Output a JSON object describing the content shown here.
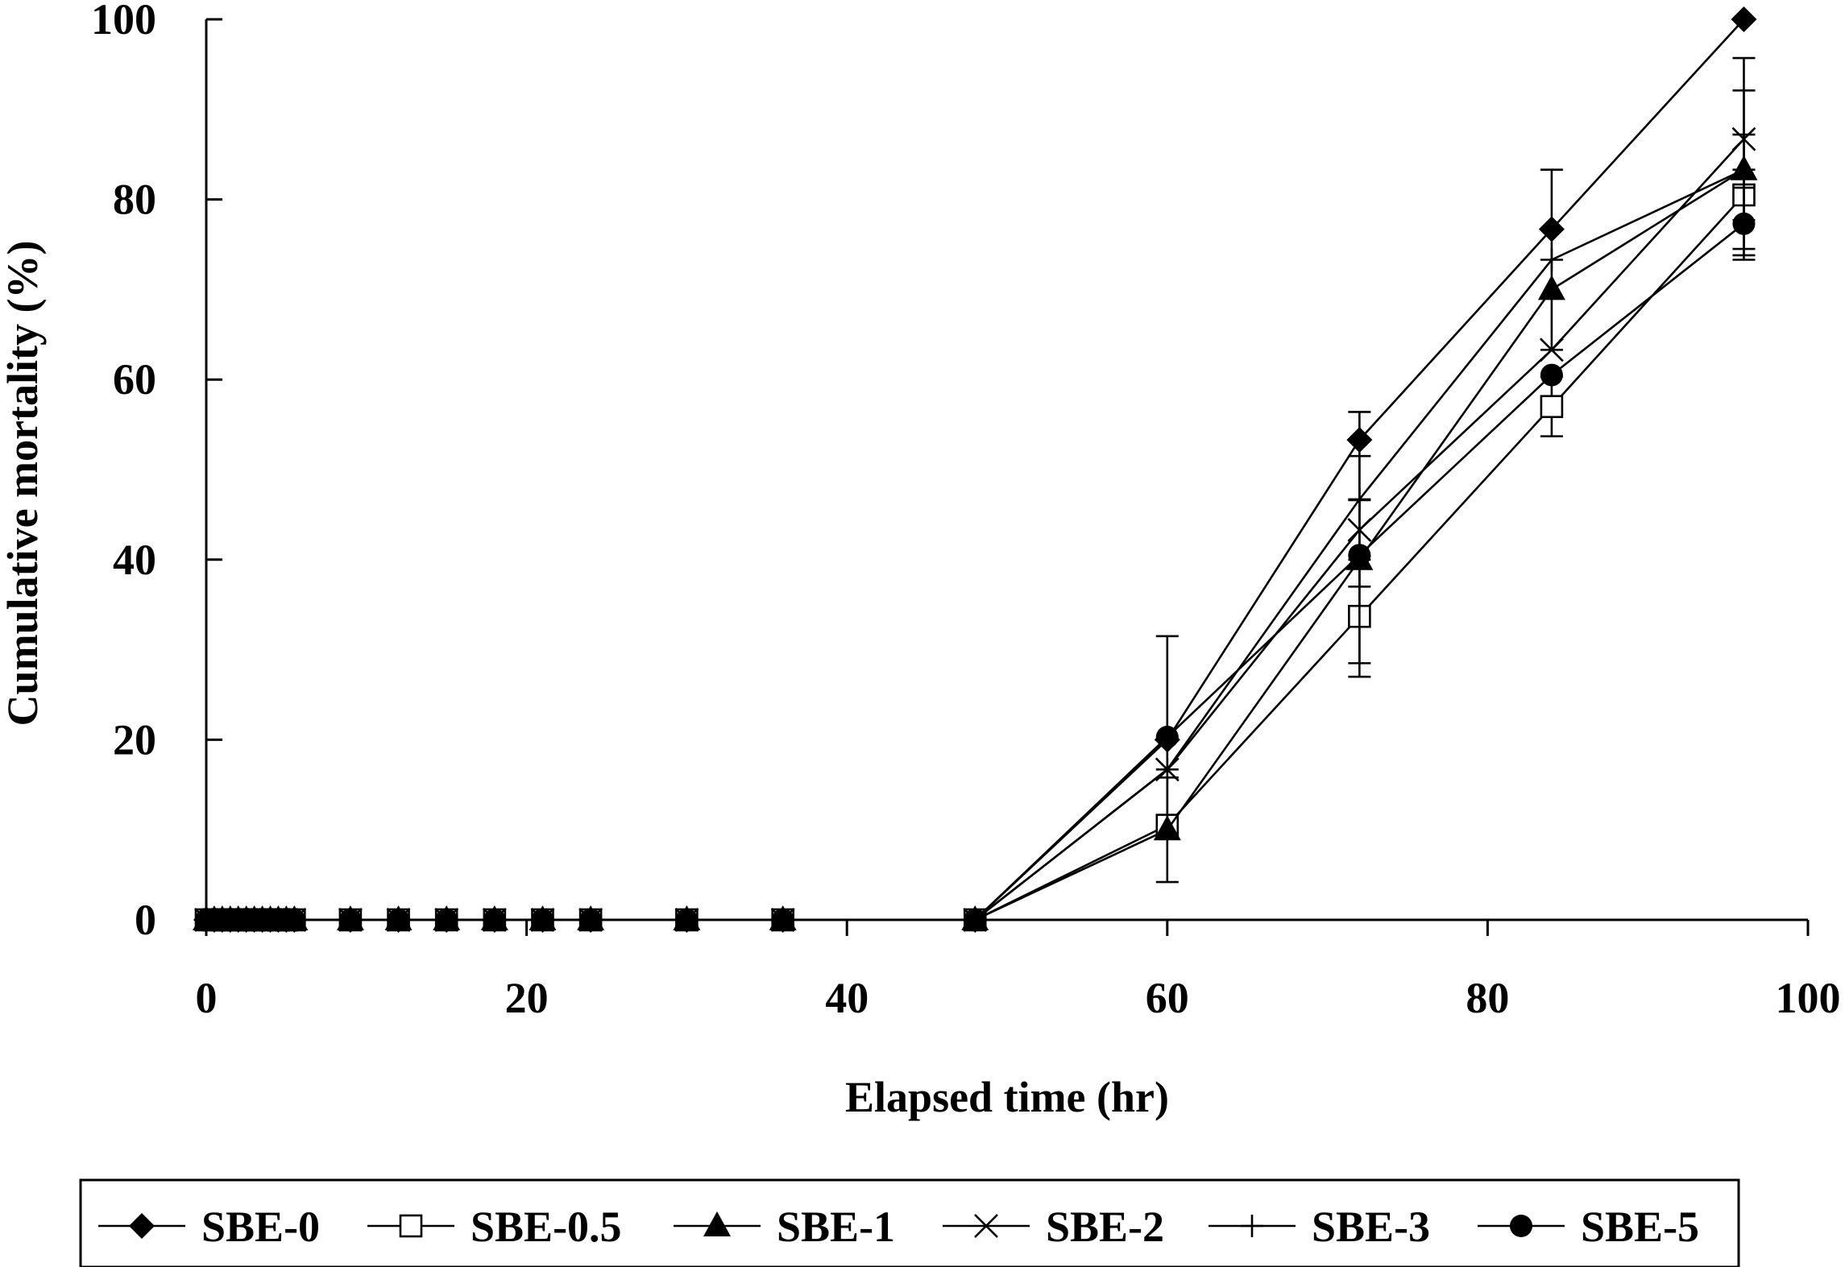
{
  "chart_data": {
    "type": "line",
    "title": "",
    "xlabel": "Elapsed time (hr)",
    "ylabel": "Cumulative mortality (%)",
    "xlim": [
      0,
      100
    ],
    "ylim": [
      0,
      100
    ],
    "xticks": [
      0,
      20,
      40,
      60,
      80,
      100
    ],
    "yticks": [
      0,
      20,
      40,
      60,
      80,
      100
    ],
    "x_tick_labels": [
      "0",
      "20",
      "40",
      "60",
      "80",
      "100"
    ],
    "y_tick_labels": [
      "0",
      "20",
      "40",
      "60",
      "80",
      "100"
    ],
    "grid": false,
    "legend_position": "bottom",
    "x": [
      0,
      0.5,
      1,
      1.5,
      2,
      2.5,
      3,
      3.5,
      4,
      4.5,
      5,
      5.5,
      9,
      12,
      15,
      18,
      21,
      24,
      30,
      36,
      48,
      60,
      72,
      84,
      96
    ],
    "series": [
      {
        "name": "SBE-0",
        "marker": "diamond",
        "values": [
          0,
          0,
          0,
          0,
          0,
          0,
          0,
          0,
          0,
          0,
          0,
          0,
          0,
          0,
          0,
          0,
          0,
          0,
          0,
          0,
          0,
          20,
          53.3,
          76.7,
          100
        ]
      },
      {
        "name": "SBE-0.5",
        "marker": "square-open",
        "values": [
          0,
          0,
          0,
          0,
          0,
          0,
          0,
          0,
          0,
          0,
          0,
          0,
          0,
          0,
          0,
          0,
          0,
          0,
          0,
          0,
          0,
          10.5,
          33.7,
          57,
          80.5
        ],
        "error": [
          0,
          0,
          0,
          0,
          0,
          0,
          0,
          0,
          0,
          0,
          0,
          0,
          0,
          0,
          0,
          0,
          0,
          0,
          0,
          0,
          0,
          0,
          6.7,
          3.3,
          6.7
        ]
      },
      {
        "name": "SBE-1",
        "marker": "triangle",
        "values": [
          0,
          0,
          0,
          0,
          0,
          0,
          0,
          0,
          0,
          0,
          0,
          0,
          0,
          0,
          0,
          0,
          0,
          0,
          0,
          0,
          0,
          10,
          40,
          70,
          83.3
        ],
        "error": [
          0,
          0,
          0,
          0,
          0,
          0,
          0,
          0,
          0,
          0,
          0,
          0,
          0,
          0,
          0,
          0,
          0,
          0,
          0,
          0,
          0,
          5.8,
          11.5,
          0,
          0
        ]
      },
      {
        "name": "SBE-2",
        "marker": "x",
        "values": [
          0,
          0,
          0,
          0,
          0,
          0,
          0,
          0,
          0,
          0,
          0,
          0,
          0,
          0,
          0,
          0,
          0,
          0,
          0,
          0,
          0,
          16.7,
          43.3,
          63.3,
          86.7
        ],
        "error": [
          0,
          0,
          0,
          0,
          0,
          0,
          0,
          0,
          0,
          0,
          0,
          0,
          0,
          0,
          0,
          0,
          0,
          0,
          0,
          0,
          0,
          0,
          3.3,
          0,
          9
        ]
      },
      {
        "name": "SBE-3",
        "marker": "plus",
        "values": [
          0,
          0,
          0,
          0,
          0,
          0,
          0,
          0,
          0,
          0,
          0,
          0,
          0,
          0,
          0,
          0,
          0,
          0,
          0,
          0,
          0,
          16.7,
          46.7,
          73.3,
          83.3
        ],
        "error": [
          0,
          0,
          0,
          0,
          0,
          0,
          0,
          0,
          0,
          0,
          0,
          0,
          0,
          0,
          0,
          0,
          0,
          0,
          0,
          0,
          0,
          0,
          9.7,
          10,
          8.8
        ]
      },
      {
        "name": "SBE-5",
        "marker": "circle",
        "values": [
          0,
          0,
          0,
          0,
          0,
          0,
          0,
          0,
          0,
          0,
          0,
          0,
          0,
          0,
          0,
          0,
          0,
          0,
          0,
          0,
          0,
          20.3,
          40.5,
          60.5,
          77.3
        ],
        "error": [
          0,
          0,
          0,
          0,
          0,
          0,
          0,
          0,
          0,
          0,
          0,
          0,
          0,
          0,
          0,
          0,
          0,
          0,
          0,
          0,
          0,
          11.2,
          0,
          0,
          4
        ]
      }
    ]
  }
}
